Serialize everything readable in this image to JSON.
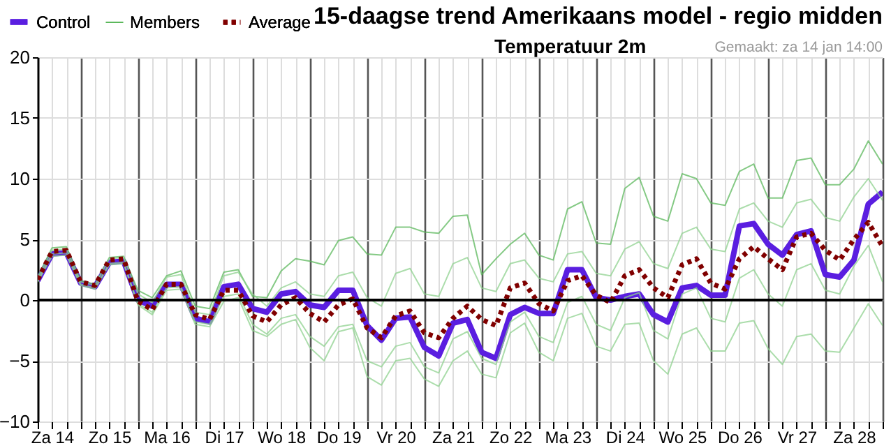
{
  "chart_data": {
    "type": "line",
    "title": "15-daagse trend Amerikaans model - regio midden",
    "subtitle": "Temperatuur 2m",
    "annotations": [
      "Gemaakt: za 14 jan 14:00"
    ],
    "categories": [
      null,
      "Za 14",
      null,
      null,
      null,
      "Zo 15",
      null,
      null,
      null,
      "Ma 16",
      null,
      null,
      null,
      "Di 17",
      null,
      null,
      null,
      "Wo 18",
      null,
      null,
      null,
      "Do 19",
      null,
      null,
      null,
      "Vr 20",
      null,
      null,
      null,
      "Za 21",
      null,
      null,
      null,
      "Zo 22",
      null,
      null,
      null,
      "Ma 23",
      null,
      null,
      null,
      "Di 24",
      null,
      null,
      null,
      "Wo 25",
      null,
      null,
      null,
      "Do 26",
      null,
      null,
      null,
      "Vr 27",
      null,
      null,
      null,
      "Za 28",
      null,
      null
    ],
    "ylim": [
      -10,
      20
    ],
    "yticks": [
      -10,
      -5,
      0,
      5,
      10,
      15,
      20
    ],
    "grid": true,
    "legend": "top left",
    "ref_lines": [
      {
        "axis": "y",
        "value": 0,
        "color": "#000000"
      }
    ],
    "series": [
      {
        "name": "Control",
        "color": "#5a1ee0",
        "line_style": "solid",
        "values": [
          1.6,
          3.8,
          3.9,
          1.4,
          1.1,
          3.1,
          3.2,
          0,
          -0.5,
          1.3,
          1.3,
          -1.5,
          -1.8,
          1.1,
          1.3,
          -0.7,
          -1.0,
          0.5,
          0.7,
          -0.4,
          -0.6,
          0.8,
          0.8,
          -2.1,
          -3.3,
          -1.5,
          -1.4,
          -3.9,
          -4.6,
          -1.9,
          -1.6,
          -4.3,
          -4.8,
          -1.2,
          -0.6,
          -1.1,
          -1.1,
          2.5,
          2.5,
          0.2,
          0,
          0.3,
          0.5,
          -1.2,
          -1.8,
          1.0,
          1.2,
          0.4,
          0.4,
          6.1,
          6.3,
          4.6,
          3.7,
          5.4,
          5.7,
          2.1,
          1.9,
          3.3,
          7.9,
          8.9
        ]
      },
      {
        "name": "Members",
        "color": "#5cb85c",
        "line_style": "solid",
        "values": [
          1.9,
          4.3,
          4.4,
          1.6,
          1.3,
          3.5,
          3.6,
          0.8,
          0.2,
          2.0,
          2.4,
          -0.5,
          -0.7,
          2.3,
          2.5,
          0.3,
          0.2,
          2.4,
          3.4,
          3.2,
          2.9,
          4.9,
          5.2,
          3.8,
          3.7,
          6.0,
          6.0,
          5.6,
          5.5,
          6.9,
          7.0,
          2.1,
          3.4,
          4.6,
          5.5,
          3.7,
          3.3,
          7.5,
          8.1,
          4.7,
          4.6,
          9.2,
          10.1,
          6.9,
          6.5,
          10.4,
          10.0,
          8.0,
          7.8,
          10.6,
          11.2,
          8.4,
          8.4,
          11.5,
          11.7,
          9.5,
          9.5,
          10.8,
          13.1,
          11.2
        ]
      },
      {
        "color": "#8fd18f",
        "line_style": "solid",
        "values": [
          1.8,
          4.1,
          4.2,
          1.5,
          1.2,
          3.4,
          3.5,
          0.5,
          -0.2,
          1.9,
          2.1,
          -1.0,
          -1.2,
          2.0,
          2.3,
          0.5,
          -0.5,
          1.0,
          1.5,
          0.5,
          0.3,
          2.0,
          2.3,
          0.2,
          -0.5,
          2.2,
          2.6,
          0.5,
          0.3,
          3.0,
          3.5,
          1.0,
          0.7,
          3.0,
          3.3,
          1.8,
          1.5,
          3.8,
          4.0,
          2.2,
          2.0,
          4.2,
          4.8,
          3.0,
          2.6,
          5.5,
          6.0,
          4.2,
          4.0,
          7.5,
          8.0,
          6.5,
          6.0,
          8.0,
          8.3,
          6.8,
          6.5,
          8.5,
          10.0,
          8.2
        ]
      },
      {
        "color": "#8fd18f",
        "line_style": "solid",
        "values": [
          1.6,
          3.8,
          3.9,
          1.3,
          1.0,
          3.0,
          3.1,
          -0.3,
          -1.0,
          1.0,
          1.1,
          -1.8,
          -2.0,
          0.3,
          0.5,
          -2.0,
          -2.8,
          -1.5,
          -1.2,
          -3.0,
          -3.8,
          -2.2,
          -2.0,
          -5.0,
          -5.5,
          -3.8,
          -3.5,
          -5.5,
          -6.0,
          -3.2,
          -2.6,
          -4.8,
          -5.3,
          -1.8,
          -1.0,
          -3.0,
          -3.5,
          -0.2,
          0.3,
          -2.0,
          -2.5,
          0.2,
          0.6,
          -2.5,
          -3.2,
          0.5,
          1.0,
          -1.5,
          -1.8,
          1.8,
          2.5,
          0.5,
          -0.5,
          2.5,
          3.0,
          0.8,
          0.5,
          2.8,
          4.5,
          1.5
        ]
      },
      {
        "color": "#8fd18f",
        "line_style": "solid",
        "values": [
          1.5,
          3.6,
          3.7,
          1.2,
          0.9,
          2.9,
          3.0,
          -0.4,
          -1.2,
          0.8,
          0.9,
          -2.0,
          -2.2,
          -0.1,
          0.2,
          -2.5,
          -3.0,
          -2.0,
          -1.6,
          -3.9,
          -5.0,
          -2.6,
          -2.3,
          -6.3,
          -7.0,
          -5.0,
          -4.8,
          -6.5,
          -7.1,
          -5.0,
          -4.2,
          -6.1,
          -6.4,
          -2.7,
          -1.9,
          -4.3,
          -5.0,
          -1.5,
          -1.1,
          -3.8,
          -4.2,
          -2.0,
          -1.9,
          -5.0,
          -6.1,
          -2.8,
          -2.3,
          -4.2,
          -4.2,
          -1.9,
          -1.7,
          -4.0,
          -5.3,
          -3.0,
          -2.8,
          -4.2,
          -4.3,
          -2.3,
          -0.3,
          -2.1
        ]
      },
      {
        "name": "Average",
        "color": "#800000",
        "line_style": "dotted",
        "values": [
          1.7,
          4.0,
          4.1,
          1.5,
          1.2,
          3.3,
          3.4,
          -0.1,
          -0.8,
          1.3,
          1.3,
          -1.2,
          -1.6,
          0.8,
          0.8,
          -1.3,
          -1.8,
          -0.4,
          0.2,
          -1.1,
          -1.8,
          -0.4,
          0.1,
          -2.3,
          -3.1,
          -1.3,
          -0.9,
          -2.7,
          -3.1,
          -1.5,
          -0.5,
          -1.6,
          -2.1,
          1.0,
          1.4,
          -0.3,
          -0.9,
          1.6,
          2.0,
          0.4,
          -0.2,
          2.0,
          2.5,
          1.0,
          0.2,
          2.9,
          3.4,
          1.4,
          0.9,
          3.4,
          4.4,
          3.4,
          2.5,
          5.2,
          5.5,
          4.1,
          3.3,
          5.0,
          6.4,
          4.4
        ]
      }
    ]
  }
}
